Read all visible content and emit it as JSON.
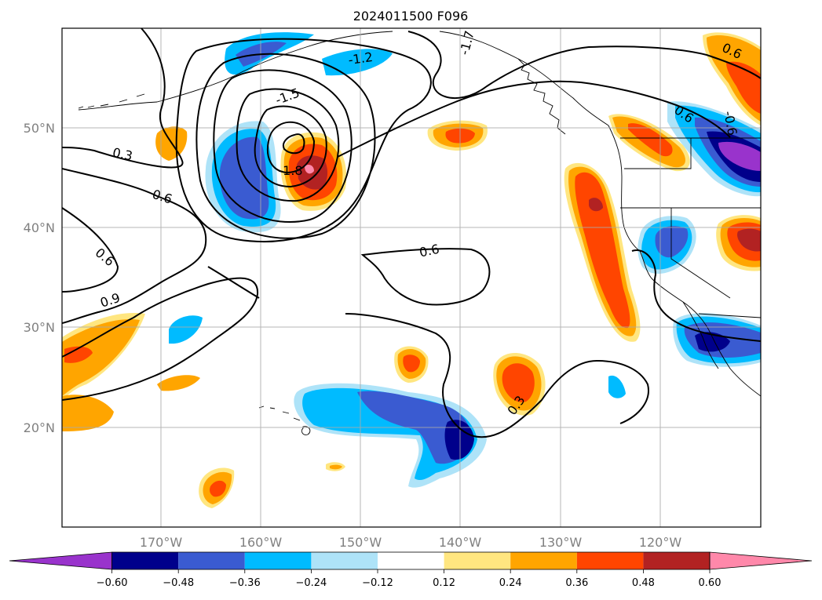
{
  "title": "2024011500 F096",
  "map": {
    "lon_labels": [
      "170°W",
      "160°W",
      "150°W",
      "140°W",
      "130°W",
      "120°W"
    ],
    "lat_labels": [
      "50°N",
      "40°N",
      "30°N",
      "20°N"
    ],
    "contour_labels": [
      "-1.2",
      "-1.5",
      "-1.8",
      "-1.7",
      "0.3",
      "0.6",
      "0.6",
      "0.6",
      "0.9",
      "0.6",
      "0.3",
      "0.6",
      "-0.6",
      "0.6"
    ]
  },
  "colorbar": {
    "tick_labels": [
      "−0.60",
      "−0.48",
      "−0.36",
      "−0.24",
      "−0.12",
      "0.12",
      "0.24",
      "0.36",
      "0.48",
      "0.60"
    ],
    "colors": [
      "#9933cc",
      "#00008b",
      "#3a5bd1",
      "#00bbff",
      "#aee3f8",
      "#ffffff",
      "#ffe680",
      "#ffa500",
      "#ff4500",
      "#b22222",
      "#ff88aa"
    ]
  }
}
